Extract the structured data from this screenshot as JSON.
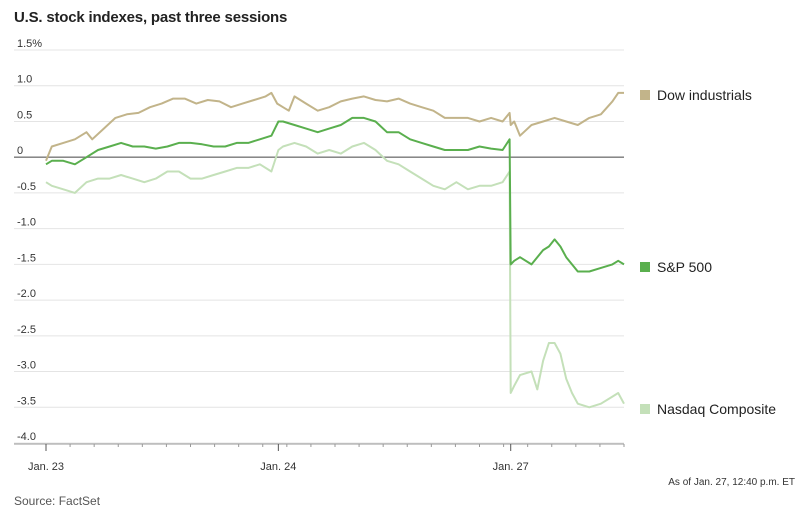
{
  "title": "U.S. stock indexes, past three sessions",
  "footnote": "As of Jan. 27, 12:40 p.m. ET",
  "source": "Source: FactSet",
  "chart_data": {
    "type": "line",
    "ylim": [
      -4.0,
      1.5
    ],
    "yticks": [
      "1.5%",
      "1.0",
      "0.5",
      "0",
      "-0.5",
      "-1.0",
      "-1.5",
      "-2.0",
      "-2.5",
      "-3.0",
      "-3.5",
      "-4.0"
    ],
    "ytick_values": [
      1.5,
      1.0,
      0.5,
      0,
      -0.5,
      -1.0,
      -1.5,
      -2.0,
      -2.5,
      -3.0,
      -3.5,
      -4.0
    ],
    "xlim": [
      0,
      100
    ],
    "xticks": [
      {
        "label": "Jan. 23",
        "x": 0
      },
      {
        "label": "Jan. 24",
        "x": 40.2
      },
      {
        "label": "Jan. 27",
        "x": 80.4
      }
    ],
    "grid": true,
    "legend": "right",
    "series": [
      {
        "name": "Dow industrials",
        "color": "#c2b48a",
        "x": [
          0,
          1,
          3,
          5,
          7,
          8,
          10,
          12,
          14,
          16,
          18,
          20,
          22,
          24,
          26,
          28,
          30,
          32,
          34,
          36,
          38,
          39,
          40,
          41,
          42,
          43,
          45,
          47,
          49,
          51,
          53,
          55,
          57,
          59,
          61,
          63,
          65,
          67,
          69,
          71,
          73,
          75,
          77,
          79,
          80.2,
          80.4,
          81,
          82,
          84,
          86,
          88,
          90,
          92,
          94,
          96,
          98,
          99,
          100
        ],
        "values": [
          -0.05,
          0.15,
          0.2,
          0.25,
          0.35,
          0.25,
          0.4,
          0.55,
          0.6,
          0.62,
          0.7,
          0.75,
          0.82,
          0.82,
          0.75,
          0.8,
          0.78,
          0.7,
          0.75,
          0.8,
          0.85,
          0.9,
          0.75,
          0.7,
          0.65,
          0.85,
          0.75,
          0.65,
          0.7,
          0.78,
          0.82,
          0.85,
          0.8,
          0.78,
          0.82,
          0.75,
          0.7,
          0.65,
          0.55,
          0.55,
          0.55,
          0.5,
          0.55,
          0.5,
          0.62,
          0.45,
          0.5,
          0.3,
          0.45,
          0.5,
          0.55,
          0.5,
          0.45,
          0.55,
          0.6,
          0.78,
          0.9,
          0.9
        ]
      },
      {
        "name": "S&P 500",
        "color": "#5aaf4e",
        "x": [
          0,
          1,
          3,
          5,
          7,
          9,
          11,
          13,
          15,
          17,
          19,
          21,
          23,
          25,
          27,
          29,
          31,
          33,
          35,
          37,
          39,
          40.2,
          41,
          43,
          45,
          47,
          49,
          51,
          53,
          55,
          57,
          59,
          61,
          63,
          65,
          67,
          69,
          71,
          73,
          75,
          77,
          79,
          80.2,
          80.4,
          81,
          82,
          84,
          86,
          87,
          88,
          89,
          90,
          92,
          94,
          96,
          98,
          99,
          100
        ],
        "values": [
          -0.1,
          -0.05,
          -0.05,
          -0.1,
          0.0,
          0.1,
          0.15,
          0.2,
          0.15,
          0.15,
          0.12,
          0.15,
          0.2,
          0.2,
          0.18,
          0.15,
          0.15,
          0.2,
          0.2,
          0.25,
          0.3,
          0.5,
          0.5,
          0.45,
          0.4,
          0.35,
          0.4,
          0.45,
          0.55,
          0.55,
          0.5,
          0.35,
          0.35,
          0.25,
          0.2,
          0.15,
          0.1,
          0.1,
          0.1,
          0.15,
          0.12,
          0.1,
          0.25,
          -1.5,
          -1.45,
          -1.4,
          -1.5,
          -1.3,
          -1.25,
          -1.15,
          -1.25,
          -1.4,
          -1.6,
          -1.6,
          -1.55,
          -1.5,
          -1.45,
          -1.5
        ]
      },
      {
        "name": "Nasdaq Composite",
        "color": "#c4e0b9",
        "x": [
          0,
          1,
          3,
          5,
          7,
          9,
          11,
          13,
          15,
          17,
          19,
          21,
          23,
          25,
          27,
          29,
          31,
          33,
          35,
          37,
          39,
          40.2,
          41,
          43,
          45,
          47,
          49,
          51,
          53,
          55,
          57,
          59,
          61,
          63,
          65,
          67,
          69,
          71,
          73,
          75,
          77,
          79,
          80.2,
          80.4,
          81,
          82,
          84,
          85,
          86,
          87,
          88,
          89,
          90,
          91,
          92,
          94,
          96,
          98,
          99,
          100
        ],
        "values": [
          -0.35,
          -0.4,
          -0.45,
          -0.5,
          -0.35,
          -0.3,
          -0.3,
          -0.25,
          -0.3,
          -0.35,
          -0.3,
          -0.2,
          -0.2,
          -0.3,
          -0.3,
          -0.25,
          -0.2,
          -0.15,
          -0.15,
          -0.1,
          -0.2,
          0.1,
          0.15,
          0.2,
          0.15,
          0.05,
          0.1,
          0.05,
          0.15,
          0.2,
          0.1,
          -0.05,
          -0.1,
          -0.2,
          -0.3,
          -0.4,
          -0.45,
          -0.35,
          -0.45,
          -0.4,
          -0.4,
          -0.35,
          -0.2,
          -3.3,
          -3.2,
          -3.05,
          -3.0,
          -3.25,
          -2.85,
          -2.6,
          -2.6,
          -2.75,
          -3.1,
          -3.3,
          -3.45,
          -3.5,
          -3.45,
          -3.35,
          -3.3,
          -3.45
        ]
      }
    ]
  }
}
